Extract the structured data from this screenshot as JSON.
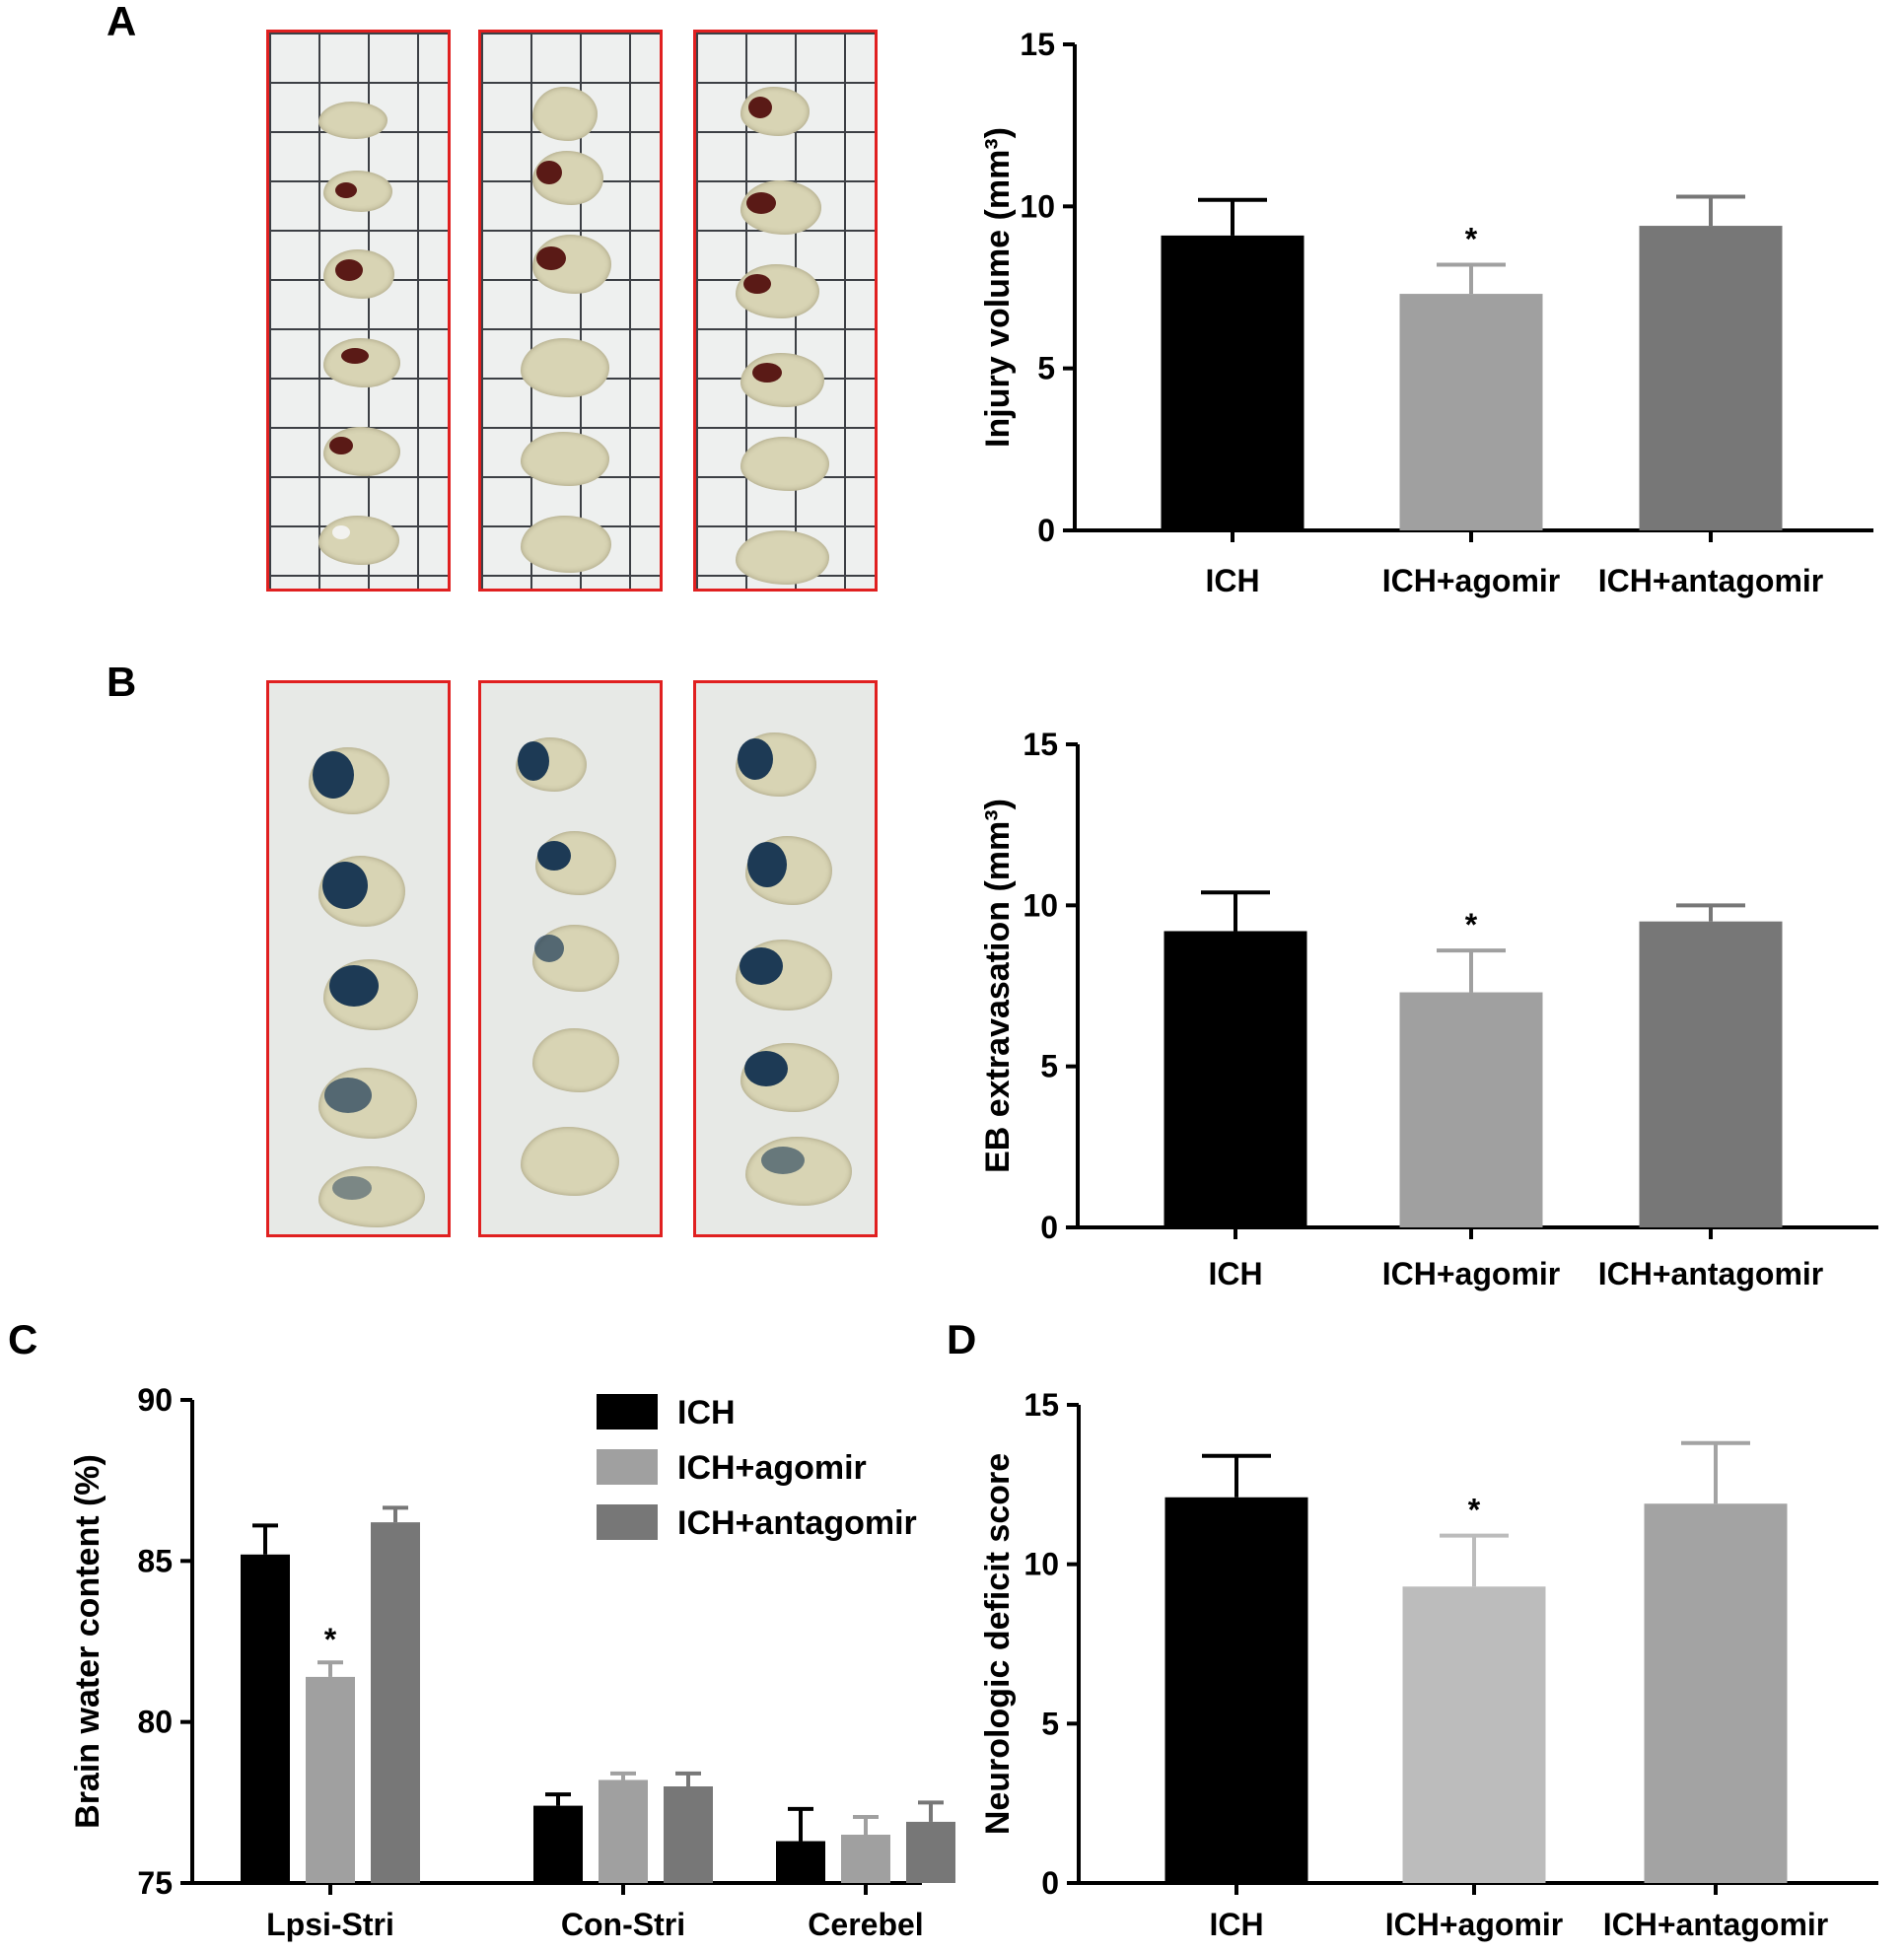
{
  "panels": {
    "A": "A",
    "B": "B",
    "C": "C",
    "D": "D"
  },
  "colors": {
    "ich": "#000000",
    "ich_agomir": "#a0a0a0",
    "ich_antagomir": "#777777",
    "frame": "#e02020"
  },
  "images": {
    "ttc_slices": "brain-slices-on-grid-paper",
    "eb_slices": "evans-blue-stained-brain-slices"
  },
  "chart_data": [
    {
      "id": "A",
      "type": "bar",
      "ylabel": "Injury volume (mm³)",
      "categories": [
        "ICH",
        "ICH+agomir",
        "ICH+antagomir"
      ],
      "values": [
        9.1,
        7.3,
        9.4
      ],
      "errors": [
        1.1,
        0.9,
        0.9
      ],
      "annotations": [
        "",
        "*",
        ""
      ],
      "ylim": [
        0,
        15
      ],
      "yticks": [
        0,
        5,
        10,
        15
      ],
      "colors": [
        "#000000",
        "#a0a0a0",
        "#777777"
      ]
    },
    {
      "id": "B",
      "type": "bar",
      "ylabel": "EB extravasation (mm³)",
      "categories": [
        "ICH",
        "ICH+agomir",
        "ICH+antagomir"
      ],
      "values": [
        9.2,
        7.3,
        9.5
      ],
      "errors": [
        1.2,
        1.3,
        0.5
      ],
      "annotations": [
        "",
        "*",
        ""
      ],
      "ylim": [
        0,
        15
      ],
      "yticks": [
        0,
        5,
        10,
        15
      ],
      "colors": [
        "#000000",
        "#a0a0a0",
        "#777777"
      ]
    },
    {
      "id": "C",
      "type": "bar",
      "ylabel": "Brain water content (%)",
      "categories": [
        "Lpsi-Stri",
        "Con-Stri",
        "Cerebel"
      ],
      "series": [
        {
          "name": "ICH",
          "values": [
            85.2,
            77.4,
            76.3
          ],
          "errors": [
            0.9,
            0.35,
            1.0
          ],
          "color": "#000000"
        },
        {
          "name": "ICH+agomir",
          "values": [
            81.4,
            78.2,
            76.5
          ],
          "errors": [
            0.45,
            0.2,
            0.55
          ],
          "color": "#a0a0a0"
        },
        {
          "name": "ICH+antagomir",
          "values": [
            86.2,
            78.0,
            76.9
          ],
          "errors": [
            0.45,
            0.4,
            0.6
          ],
          "color": "#777777"
        }
      ],
      "annotations": [
        [
          "",
          "*",
          ""
        ],
        [
          "",
          "",
          ""
        ],
        [
          "",
          "",
          ""
        ]
      ],
      "ylim": [
        75,
        90
      ],
      "yticks": [
        75,
        80,
        85,
        90
      ],
      "legend": "top-right"
    },
    {
      "id": "D",
      "type": "bar",
      "ylabel": "Neurologic deficit score",
      "categories": [
        "ICH",
        "ICH+agomir",
        "ICH+antagomir"
      ],
      "values": [
        12.1,
        9.3,
        11.9
      ],
      "errors": [
        1.3,
        1.6,
        1.9
      ],
      "annotations": [
        "",
        "*",
        ""
      ],
      "ylim": [
        0,
        15
      ],
      "yticks": [
        0,
        5,
        10,
        15
      ],
      "colors": [
        "#000000",
        "#bcbcbc",
        "#a3a3a3"
      ]
    }
  ]
}
